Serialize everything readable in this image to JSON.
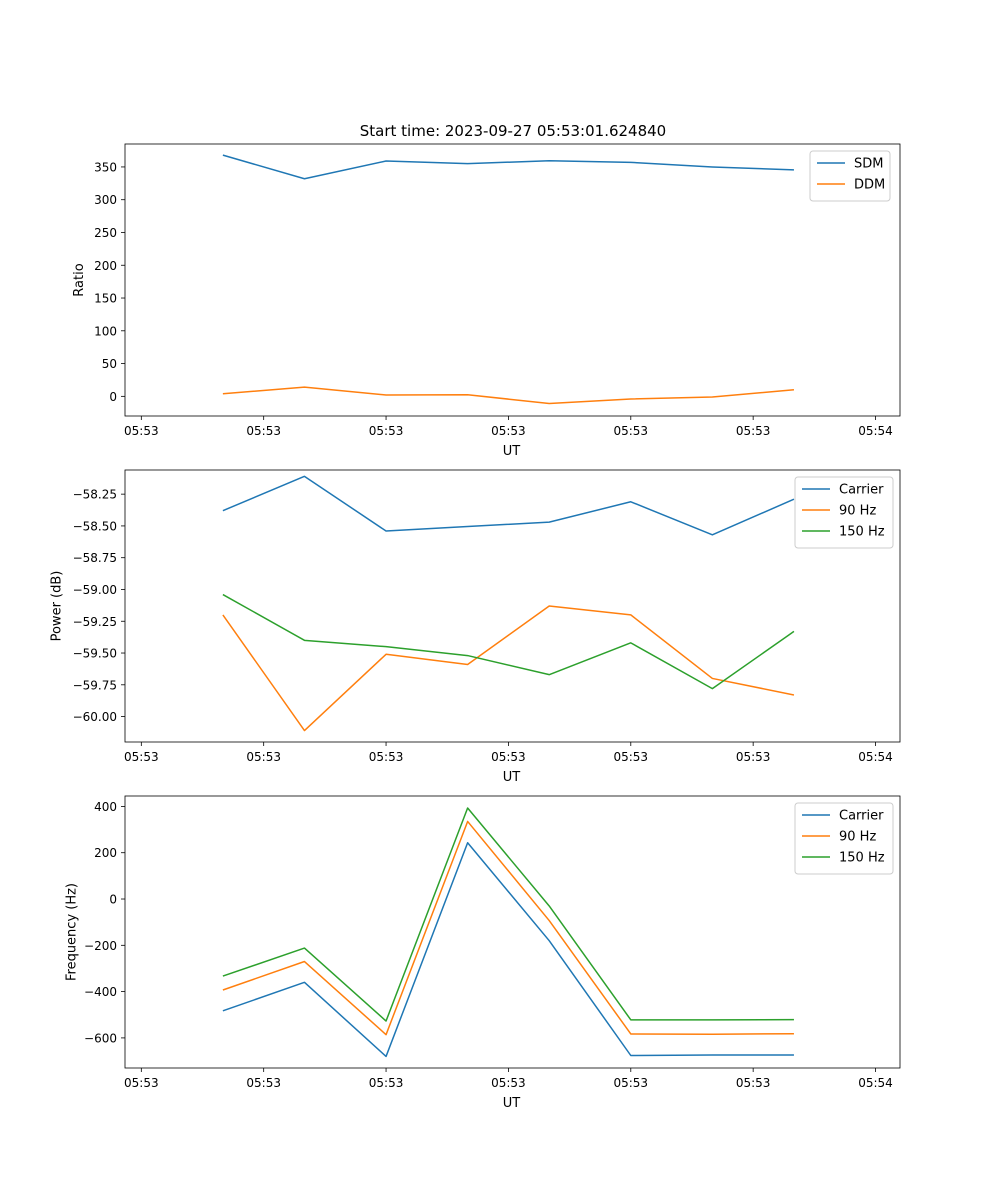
{
  "figure": {
    "title": "Start time: 2023-09-27 05:53:01.624840"
  },
  "colors": {
    "blue": "#1f77b4",
    "orange": "#ff7f0e",
    "green": "#2ca02c"
  },
  "chart_data": [
    {
      "type": "line",
      "name": "ratio-panel",
      "xlabel": "UT",
      "ylabel": "Ratio",
      "x_index": [
        1,
        2,
        3,
        4,
        5,
        6,
        7,
        8
      ],
      "xlim": [
        -0.2,
        9.3
      ],
      "x_ticks": [
        0,
        1.5,
        3,
        4.5,
        6,
        7.5,
        9
      ],
      "x_tick_labels": [
        "05:53",
        "05:53",
        "05:53",
        "05:53",
        "05:53",
        "05:53",
        "05:54"
      ],
      "ylim": [
        -30,
        385
      ],
      "y_ticks": [
        0,
        50,
        100,
        150,
        200,
        250,
        300,
        350
      ],
      "y_tick_labels": [
        "0",
        "50",
        "100",
        "150",
        "200",
        "250",
        "300",
        "350"
      ],
      "legend": "top-right",
      "series": [
        {
          "name": "SDM",
          "color": "#1f77b4",
          "values": [
            368,
            332,
            359,
            355,
            359.5,
            357,
            350,
            345.5
          ]
        },
        {
          "name": "DDM",
          "color": "#ff7f0e",
          "values": [
            4,
            14,
            2,
            2.5,
            -11,
            -4,
            -1,
            10
          ]
        }
      ]
    },
    {
      "type": "line",
      "name": "power-panel",
      "xlabel": "UT",
      "ylabel": "Power (dB)",
      "x_index": [
        1,
        2,
        3,
        4,
        5,
        6,
        7,
        8
      ],
      "xlim": [
        -0.2,
        9.3
      ],
      "x_ticks": [
        0,
        1.5,
        3,
        4.5,
        6,
        7.5,
        9
      ],
      "x_tick_labels": [
        "05:53",
        "05:53",
        "05:53",
        "05:53",
        "05:53",
        "05:53",
        "05:54"
      ],
      "ylim": [
        -60.2,
        -58.06
      ],
      "y_ticks": [
        -60.0,
        -59.75,
        -59.5,
        -59.25,
        -59.0,
        -58.75,
        -58.5,
        -58.25
      ],
      "y_tick_labels": [
        "−60.00",
        "−59.75",
        "−59.50",
        "−59.25",
        "−59.00",
        "−58.75",
        "−58.50",
        "−58.25"
      ],
      "legend": "top-right",
      "series": [
        {
          "name": "Carrier",
          "color": "#1f77b4",
          "values": [
            -58.38,
            -58.11,
            -58.54,
            -58.505,
            -58.47,
            -58.31,
            -58.57,
            -58.29
          ]
        },
        {
          "name": "90 Hz",
          "color": "#ff7f0e",
          "values": [
            -59.2,
            -60.11,
            -59.51,
            -59.59,
            -59.13,
            -59.2,
            -59.7,
            -59.83
          ]
        },
        {
          "name": "150 Hz",
          "color": "#2ca02c",
          "values": [
            -59.04,
            -59.4,
            -59.45,
            -59.52,
            -59.67,
            -59.42,
            -59.78,
            -59.33
          ]
        }
      ]
    },
    {
      "type": "line",
      "name": "frequency-panel",
      "xlabel": "UT",
      "ylabel": "Frequency (Hz)",
      "x_index": [
        1,
        2,
        3,
        4,
        5,
        6,
        7,
        8
      ],
      "xlim": [
        -0.2,
        9.3
      ],
      "x_ticks": [
        0,
        1.5,
        3,
        4.5,
        6,
        7.5,
        9
      ],
      "x_tick_labels": [
        "05:53",
        "05:53",
        "05:53",
        "05:53",
        "05:53",
        "05:53",
        "05:54"
      ],
      "ylim": [
        -730,
        445
      ],
      "y_ticks": [
        -600,
        -400,
        -200,
        0,
        200,
        400
      ],
      "y_tick_labels": [
        "−600",
        "−400",
        "−200",
        "0",
        "200",
        "400"
      ],
      "legend": "top-right",
      "series": [
        {
          "name": "Carrier",
          "color": "#1f77b4",
          "values": [
            -483,
            -360,
            -680,
            243,
            -180,
            -676,
            -674,
            -674
          ]
        },
        {
          "name": "90 Hz",
          "color": "#ff7f0e",
          "values": [
            -393,
            -270,
            -586,
            335,
            -93,
            -583,
            -584,
            -582
          ]
        },
        {
          "name": "150 Hz",
          "color": "#2ca02c",
          "values": [
            -333,
            -212,
            -527,
            393,
            -30,
            -522,
            -522,
            -521
          ]
        }
      ]
    }
  ]
}
